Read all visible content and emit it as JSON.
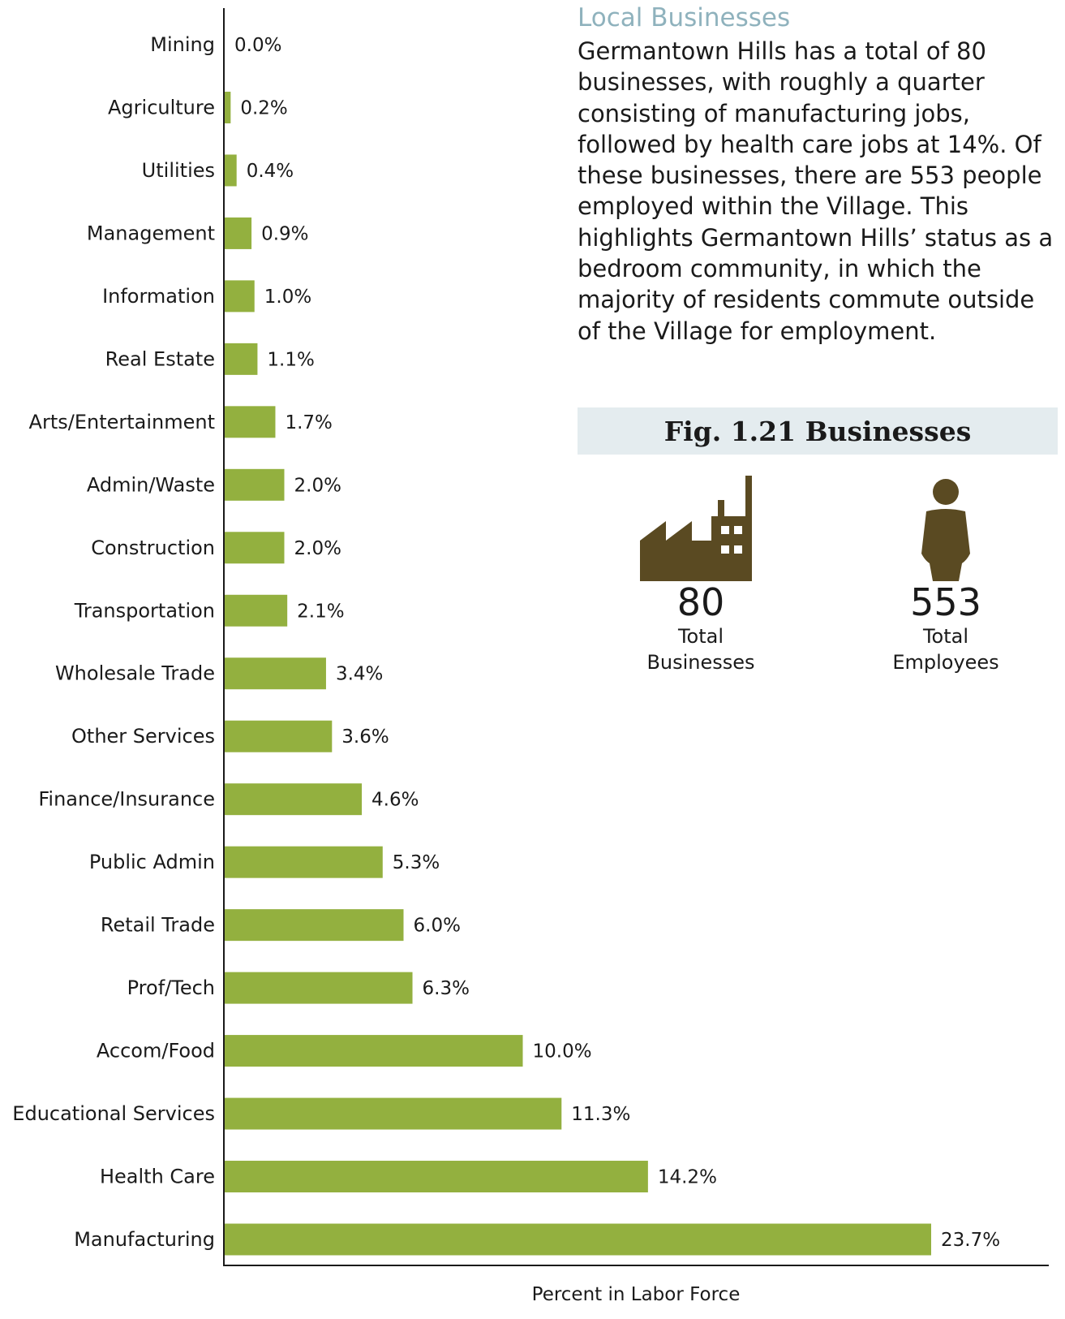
{
  "section": {
    "heading": "Local Businesses",
    "body": "Germantown Hills has a total of 80 businesses, with roughly a quarter consisting of manufacturing jobs, followed by health care jobs at 14%. Of these businesses, there are 553 people employed within the Village. This highlights Germantown Hills’ status as a bedroom community, in which the majority of residents commute outside of the Village for employment."
  },
  "figure": {
    "title": "Fig. 1.21 Businesses",
    "stats": [
      {
        "icon": "factory-icon",
        "number": "80",
        "label": "Total Businesses"
      },
      {
        "icon": "person-icon",
        "number": "553",
        "label": "Total Employees"
      }
    ],
    "icon_color": "#5a4a22",
    "box_color": "#e4ecef"
  },
  "chart_data": {
    "type": "bar",
    "orientation": "horizontal",
    "categories": [
      "Mining",
      "Agriculture",
      "Utilities",
      "Management",
      "Information",
      "Real Estate",
      "Arts/Entertainment",
      "Admin/Waste",
      "Construction",
      "Transportation",
      "Wholesale Trade",
      "Other Services",
      "Finance/Insurance",
      "Public Admin",
      "Retail Trade",
      "Prof/Tech",
      "Accom/Food",
      "Educational Services",
      "Health Care",
      "Manufacturing"
    ],
    "values": [
      0.0,
      0.2,
      0.4,
      0.9,
      1.0,
      1.1,
      1.7,
      2.0,
      2.0,
      2.1,
      3.4,
      3.6,
      4.6,
      5.3,
      6.0,
      6.3,
      10.0,
      11.3,
      14.2,
      23.7
    ],
    "value_labels": [
      "0.0%",
      "0.2%",
      "0.4%",
      "0.9%",
      "1.0%",
      "1.1%",
      "1.7%",
      "2.0%",
      "2.0%",
      "2.1%",
      "3.4%",
      "3.6%",
      "4.6%",
      "5.3%",
      "6.0%",
      "6.3%",
      "10.0%",
      "11.3%",
      "14.2%",
      "23.7%"
    ],
    "xlabel": "Percent in Labor Force",
    "ylabel": "",
    "xlim": [
      0,
      28
    ],
    "bar_color": "#93b03f",
    "grid": false
  }
}
